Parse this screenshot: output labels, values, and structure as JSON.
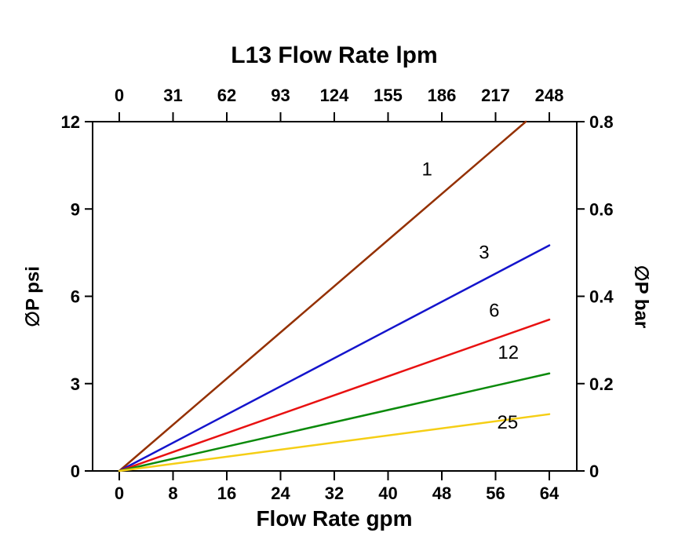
{
  "chart_data": {
    "type": "line",
    "title": "L13 Flow Rate lpm",
    "xlabel_bottom": "Flow Rate gpm",
    "ylabel_left": "∅P psi",
    "ylabel_right": "∅P bar",
    "xlim": [
      0,
      64
    ],
    "ylim": [
      0,
      12
    ],
    "ylim_right": [
      0,
      0.8
    ],
    "x_bottom_ticks": [
      0,
      8,
      16,
      24,
      32,
      40,
      48,
      56,
      64
    ],
    "x_top_ticks": [
      0,
      31,
      62,
      93,
      124,
      155,
      186,
      217,
      248
    ],
    "y_left_ticks": [
      0,
      3,
      6,
      9,
      12
    ],
    "y_right_ticks": [
      0,
      0.2,
      0.4,
      0.6,
      0.8
    ],
    "grid": false,
    "legend_position": "inline-labels",
    "axis_color": "#000000",
    "background_color": "#ffffff",
    "series": [
      {
        "name": "1",
        "color": "#943000",
        "points": [
          [
            0,
            0
          ],
          [
            60.5,
            12
          ]
        ],
        "label_pos": [
          45.8,
          10.15
        ]
      },
      {
        "name": "3",
        "color": "#1414CC",
        "points": [
          [
            0,
            0
          ],
          [
            64,
            7.75
          ]
        ],
        "label_pos": [
          54.3,
          7.3
        ]
      },
      {
        "name": "6",
        "color": "#E81111",
        "points": [
          [
            0,
            0
          ],
          [
            64,
            5.2
          ]
        ],
        "label_pos": [
          55.8,
          5.3
        ]
      },
      {
        "name": "12",
        "color": "#0B8A0B",
        "points": [
          [
            0,
            0
          ],
          [
            64,
            3.35
          ]
        ],
        "label_pos": [
          57.9,
          3.85
        ]
      },
      {
        "name": "25",
        "color": "#F5CE15",
        "points": [
          [
            0,
            0
          ],
          [
            64,
            1.95
          ]
        ],
        "label_pos": [
          57.8,
          1.45
        ]
      }
    ]
  }
}
